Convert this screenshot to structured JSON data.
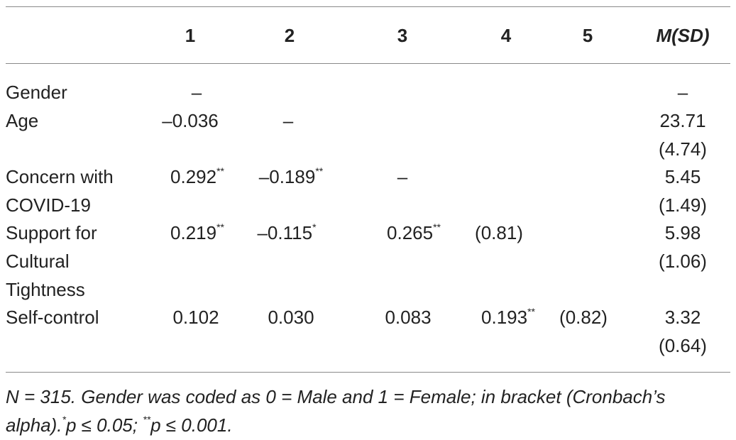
{
  "table": {
    "columns": [
      "1",
      "2",
      "3",
      "4",
      "5",
      "M(SD)"
    ],
    "rows": [
      {
        "label": "Gender",
        "label_lines": [
          "Gender"
        ],
        "cells": [
          {
            "v": "–",
            "s": ""
          },
          {
            "v": "",
            "s": ""
          },
          {
            "v": "",
            "s": ""
          },
          {
            "v": "",
            "s": ""
          },
          {
            "v": "",
            "s": ""
          }
        ],
        "msd": [
          "–",
          ""
        ]
      },
      {
        "label": "Age",
        "label_lines": [
          "Age"
        ],
        "cells": [
          {
            "v": "–0.036",
            "s": ""
          },
          {
            "v": "–",
            "s": ""
          },
          {
            "v": "",
            "s": ""
          },
          {
            "v": "",
            "s": ""
          },
          {
            "v": "",
            "s": ""
          }
        ],
        "msd": [
          "23.71",
          "(4.74)"
        ]
      },
      {
        "label": "Concern with COVID-19",
        "label_lines": [
          "Concern with",
          "COVID-19"
        ],
        "cells": [
          {
            "v": "0.292",
            "s": "**"
          },
          {
            "v": "–0.189",
            "s": "**"
          },
          {
            "v": "–",
            "s": ""
          },
          {
            "v": "",
            "s": ""
          },
          {
            "v": "",
            "s": ""
          }
        ],
        "msd": [
          "5.45",
          "(1.49)"
        ]
      },
      {
        "label": "Support for Cultural Tightness",
        "label_lines": [
          "Support for",
          "Cultural",
          "Tightness"
        ],
        "cells": [
          {
            "v": "0.219",
            "s": "**"
          },
          {
            "v": "–0.115",
            "s": "*"
          },
          {
            "v": "0.265",
            "s": "**"
          },
          {
            "v": "(0.81)",
            "s": ""
          },
          {
            "v": "",
            "s": ""
          }
        ],
        "msd": [
          "5.98",
          "(1.06)"
        ]
      },
      {
        "label": "Self-control",
        "label_lines": [
          "Self-control"
        ],
        "cells": [
          {
            "v": "0.102",
            "s": ""
          },
          {
            "v": "0.030",
            "s": ""
          },
          {
            "v": "0.083",
            "s": ""
          },
          {
            "v": "0.193",
            "s": "**"
          },
          {
            "v": "(0.82)",
            "s": ""
          }
        ],
        "msd": [
          "3.32",
          "(0.64)"
        ]
      }
    ]
  },
  "note": {
    "part1": "N = 315. Gender was coded as 0 = Male and 1 = Female; in bracket (Cronbach’s alpha).",
    "sup1": "*",
    "part2": "p ≤ 0.05; ",
    "sup2": "**",
    "part3": "p ≤ 0.001."
  }
}
